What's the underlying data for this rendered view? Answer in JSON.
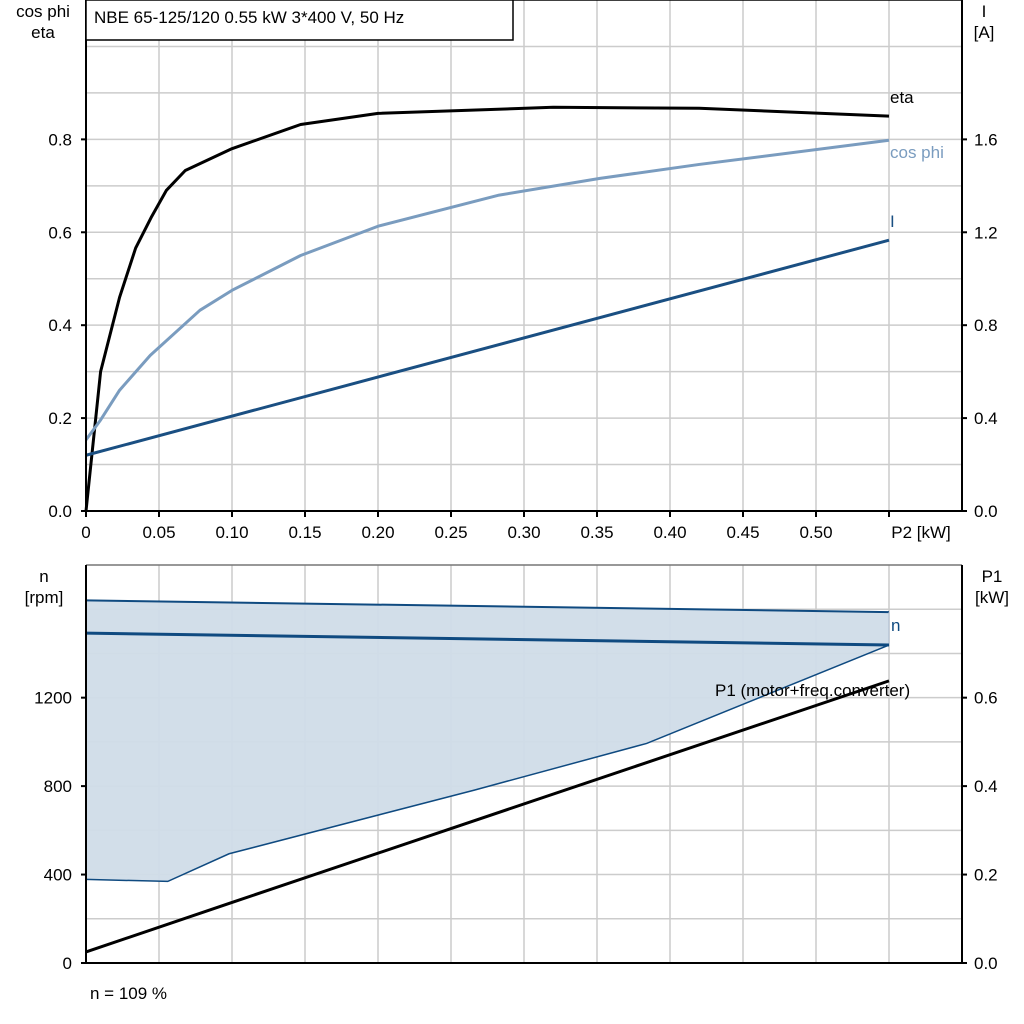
{
  "chart_data": [
    {
      "type": "line",
      "title": "NBE 65-125/120   0.55 kW   3*400 V, 50 Hz",
      "xlabel": "P2 [kW]",
      "ylabel_left": [
        "cos phi",
        "eta"
      ],
      "ylabel_right": [
        "I",
        "[A]"
      ],
      "xlim": [
        0,
        0.6
      ],
      "ylim_left": [
        0,
        1.1
      ],
      "ylim_right": [
        0,
        2.2
      ],
      "grid": true,
      "x_ticks": [
        "0",
        "0.05",
        "0.10",
        "0.15",
        "0.20",
        "0.25",
        "0.30",
        "0.35",
        "0.40",
        "0.45",
        "0.50"
      ],
      "y_ticks_left": [
        "0.0",
        "0.2",
        "0.4",
        "0.6",
        "0.8"
      ],
      "y_ticks_right": [
        "0.0",
        "0.4",
        "0.8",
        "1.2",
        "1.6"
      ],
      "series": [
        {
          "name": "eta",
          "axis": "left",
          "color": "#000000",
          "x": [
            0,
            0.01,
            0.023,
            0.034,
            0.045,
            0.055,
            0.068,
            0.1,
            0.147,
            0.2,
            0.32,
            0.42,
            0.55
          ],
          "y": [
            0,
            0.3,
            0.46,
            0.566,
            0.634,
            0.69,
            0.733,
            0.78,
            0.832,
            0.856,
            0.869,
            0.867,
            0.85
          ]
        },
        {
          "name": "cos phi",
          "axis": "left",
          "color": "#7a9cbf",
          "x": [
            0,
            0.01,
            0.023,
            0.044,
            0.078,
            0.1,
            0.147,
            0.2,
            0.283,
            0.352,
            0.42,
            0.55
          ],
          "y": [
            0.153,
            0.196,
            0.26,
            0.335,
            0.432,
            0.475,
            0.55,
            0.613,
            0.68,
            0.716,
            0.746,
            0.798
          ]
        },
        {
          "name": "I",
          "axis": "right",
          "color": "#1a4f82",
          "x": [
            0,
            0.55
          ],
          "y": [
            0.24,
            1.166
          ]
        }
      ]
    },
    {
      "type": "line",
      "xlabel": "",
      "ylabel_left": [
        "n",
        "[rpm]"
      ],
      "ylabel_right": [
        "P1",
        "[kW]"
      ],
      "xlim": [
        0,
        0.6
      ],
      "ylim_left": [
        0,
        1800
      ],
      "ylim_right": [
        0,
        0.9
      ],
      "grid": true,
      "y_ticks_left": [
        "0",
        "400",
        "800",
        "1200"
      ],
      "y_ticks_right": [
        "0.0",
        "0.2",
        "0.4",
        "0.6"
      ],
      "footnote": "n = 109 %",
      "range_area": {
        "color": "#d0dce8",
        "edge_color": "#0f4a80",
        "upper": {
          "x": [
            0,
            0.55
          ],
          "y": [
            1640,
            1587
          ]
        },
        "lower": {
          "x": [
            0,
            0.056,
            0.098,
            0.266,
            0.384,
            0.55
          ],
          "y": [
            378,
            369,
            494,
            782,
            993,
            1438
          ]
        }
      },
      "series": [
        {
          "name": "n",
          "axis": "left",
          "color": "#0f4a80",
          "x": [
            0,
            0.55
          ],
          "y": [
            1492,
            1438
          ]
        },
        {
          "name": "P1 (motor+freq.converter)",
          "axis": "right",
          "color": "#000000",
          "x": [
            0,
            0.1,
            0.55
          ],
          "y": [
            0.025,
            0.137,
            0.638
          ]
        }
      ]
    }
  ]
}
